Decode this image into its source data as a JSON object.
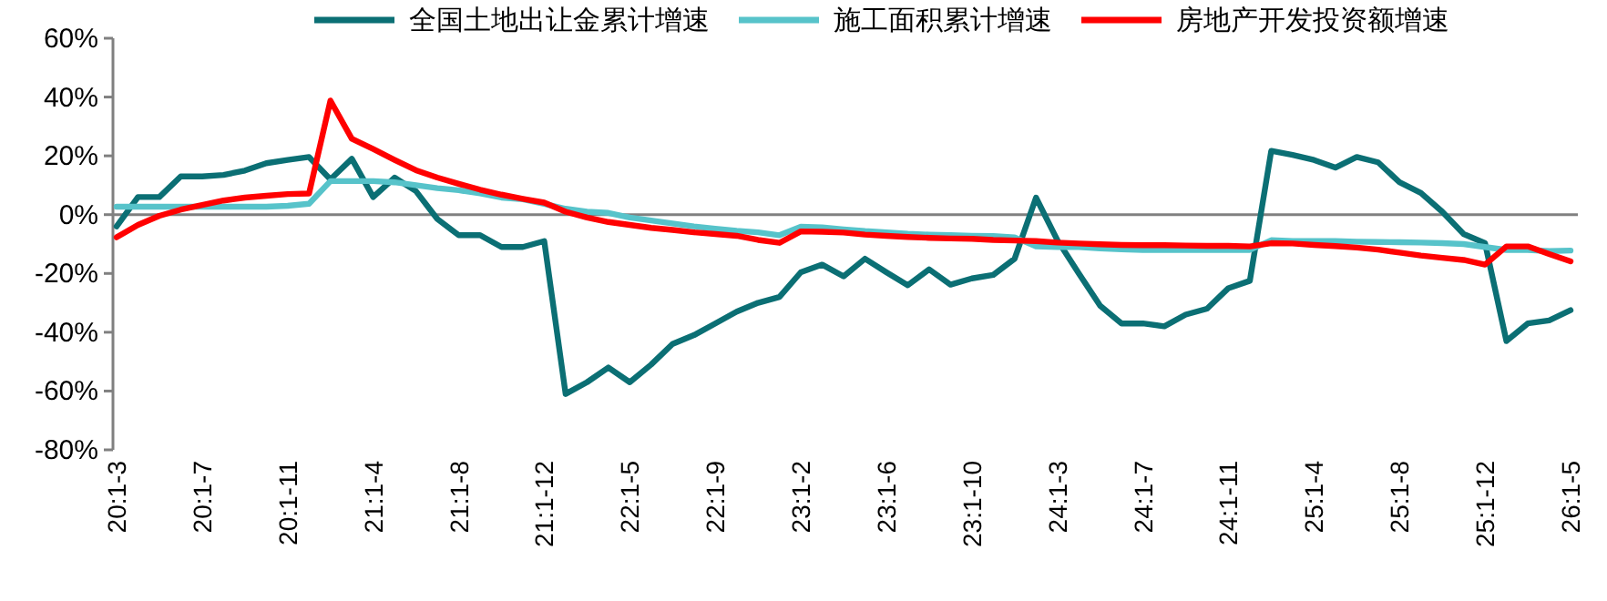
{
  "chart_data": {
    "type": "line",
    "categories": [
      "20:1-3",
      null,
      null,
      null,
      "20:1-7",
      null,
      null,
      null,
      "20:1-11",
      null,
      null,
      null,
      "21:1-4",
      null,
      null,
      null,
      "21:1-8",
      null,
      null,
      null,
      "21:1-12",
      null,
      null,
      null,
      "22:1-5",
      null,
      null,
      null,
      "22:1-9",
      null,
      null,
      null,
      "23:1-2",
      null,
      null,
      null,
      "23:1-6",
      null,
      null,
      null,
      "23:1-10",
      null,
      null,
      null,
      "24:1-3",
      null,
      null,
      null,
      "24:1-7",
      null,
      null,
      null,
      "24:1-11",
      null,
      null,
      null,
      "25:1-4",
      null,
      null,
      null,
      "25:1-8",
      null,
      null,
      null,
      "25:1-12",
      null,
      null,
      null,
      "26:1-5"
    ],
    "series": [
      {
        "name": "全国土地出让金累计增速",
        "color": "#0b6f74",
        "values": [
          -4,
          6,
          6,
          13,
          13,
          13.5,
          15,
          17.5,
          18.6,
          19.6,
          12,
          19,
          6,
          12.6,
          8,
          -1.5,
          -7,
          -7,
          -11,
          -11,
          -9,
          -61,
          -57,
          -52,
          -57,
          -51,
          -44,
          -41,
          -37,
          -33,
          -30,
          -28,
          -19.6,
          -17,
          -21,
          -15,
          -19.6,
          -24,
          -18.6,
          -23.8,
          -21.7,
          -20.5,
          -15,
          5.8,
          -8.7,
          -20,
          -31,
          -37,
          -37,
          -38,
          -34,
          -32,
          -25,
          -22.5,
          21.7,
          20.3,
          18.6,
          16,
          19.6,
          17.8,
          11,
          7.4,
          1,
          -6.6,
          -9.7,
          -43,
          -37,
          -36,
          -32.5
        ]
      },
      {
        "name": "施工面积累计增速",
        "color": "#57c3ca",
        "values": [
          2.7,
          2.7,
          2.7,
          2.7,
          2.7,
          2.7,
          2.7,
          2.7,
          3,
          3.7,
          11.4,
          11.4,
          11.4,
          11,
          10,
          9,
          8.3,
          7.2,
          5.8,
          5.2,
          3.7,
          2,
          1,
          0.6,
          -1,
          -2,
          -3,
          -4,
          -4.8,
          -5.5,
          -6,
          -7,
          -4.1,
          -4.3,
          -5,
          -5.6,
          -6,
          -6.5,
          -6.8,
          -7,
          -7.2,
          -7.3,
          -7.7,
          -10.8,
          -11,
          -11,
          -11.5,
          -11.8,
          -12,
          -12,
          -12,
          -12,
          -12,
          -12,
          -8.7,
          -9,
          -9,
          -9,
          -9.2,
          -9.3,
          -9.4,
          -9.5,
          -9.7,
          -10,
          -11,
          -12,
          -12,
          -12.4,
          -12.2
        ]
      },
      {
        "name": "房地产开发投资额增速",
        "color": "#ff0000",
        "values": [
          -7.7,
          -3.5,
          -0.4,
          1.7,
          3.3,
          4.8,
          5.8,
          6.4,
          7,
          7.2,
          38.8,
          25.8,
          22.3,
          18.6,
          15.1,
          12.6,
          10.5,
          8.5,
          6.8,
          5.4,
          4.1,
          1,
          -1,
          -2.5,
          -3.5,
          -4.5,
          -5.2,
          -6,
          -6.6,
          -7.2,
          -8.6,
          -9.6,
          -5.7,
          -5.8,
          -6.1,
          -6.8,
          -7.2,
          -7.6,
          -7.9,
          -8.1,
          -8.2,
          -8.6,
          -8.8,
          -9,
          -9.5,
          -9.8,
          -10.1,
          -10.3,
          -10.4,
          -10.4,
          -10.5,
          -10.6,
          -10.6,
          -10.8,
          -9.7,
          -9.8,
          -10.3,
          -10.7,
          -11.2,
          -11.9,
          -12.9,
          -13.9,
          -14.7,
          -15.4,
          -17,
          -10.8,
          -10.8,
          -13.4,
          -15.9
        ]
      }
    ],
    "ylim": [
      -80,
      60
    ],
    "yticks": [
      {
        "value": -80,
        "label": "-80%"
      },
      {
        "value": -60,
        "label": "-60%"
      },
      {
        "value": -40,
        "label": "-40%"
      },
      {
        "value": -20,
        "label": "-20%"
      },
      {
        "value": 0,
        "label": "0%"
      },
      {
        "value": 20,
        "label": "20%"
      },
      {
        "value": 40,
        "label": "40%"
      },
      {
        "value": 60,
        "label": "60%"
      }
    ],
    "ref_lines": [
      {
        "axis": "y",
        "value": 0,
        "color": "#808080"
      }
    ],
    "legend": "top",
    "grid": false,
    "marker": "none",
    "line_style": "solid"
  }
}
